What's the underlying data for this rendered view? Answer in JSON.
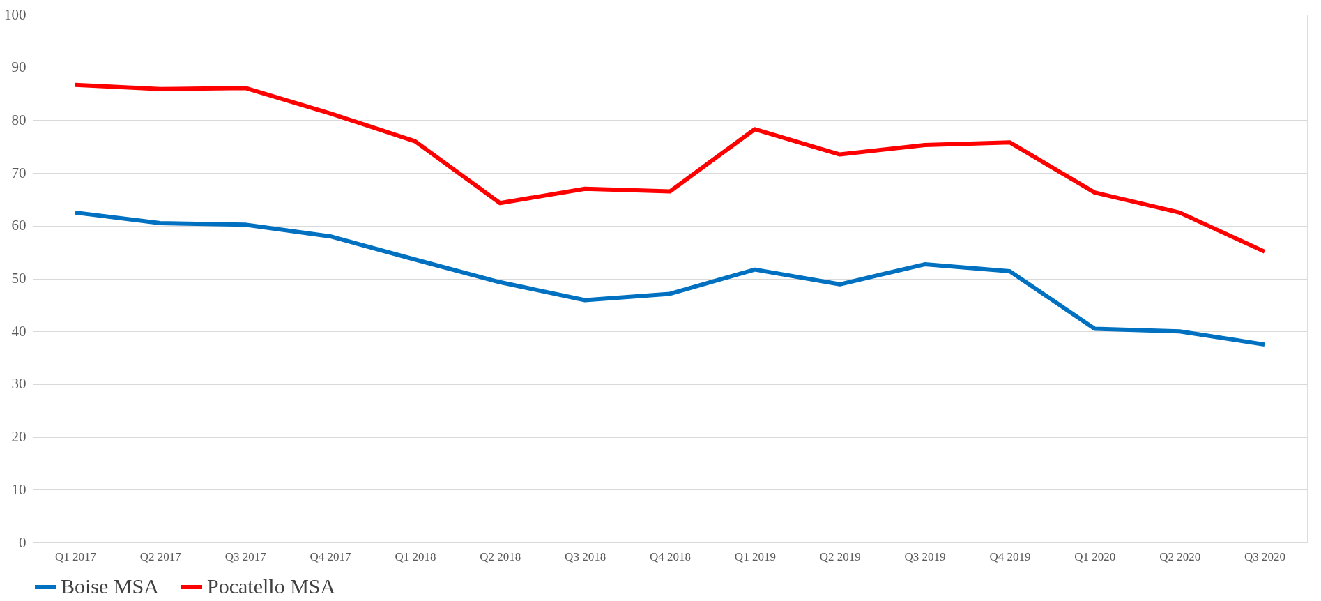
{
  "chart_data": {
    "type": "line",
    "categories": [
      "Q1 2017",
      "Q2 2017",
      "Q3 2017",
      "Q4 2017",
      "Q1 2018",
      "Q2 2018",
      "Q3 2018",
      "Q4 2018",
      "Q1 2019",
      "Q2 2019",
      "Q3 2019",
      "Q4 2019",
      "Q1 2020",
      "Q2 2020",
      "Q3 2020"
    ],
    "series": [
      {
        "name": "Boise MSA",
        "color": "#0070c0",
        "values": [
          62.5,
          60.5,
          60.2,
          58.0,
          53.6,
          49.3,
          45.9,
          47.1,
          51.7,
          48.9,
          52.7,
          51.4,
          40.5,
          40.0,
          37.5
        ]
      },
      {
        "name": "Pocatello MSA",
        "color": "#ff0000",
        "values": [
          86.7,
          85.9,
          86.1,
          81.3,
          76.0,
          64.3,
          67.0,
          66.5,
          78.3,
          73.5,
          75.3,
          75.8,
          66.3,
          62.5,
          55.1
        ]
      }
    ],
    "ylim": [
      0,
      100
    ],
    "yticks": [
      0,
      10,
      20,
      30,
      40,
      50,
      60,
      70,
      80,
      90,
      100
    ],
    "grid": "y",
    "legend": "bottom",
    "marker": "none",
    "line_style": "solid"
  }
}
